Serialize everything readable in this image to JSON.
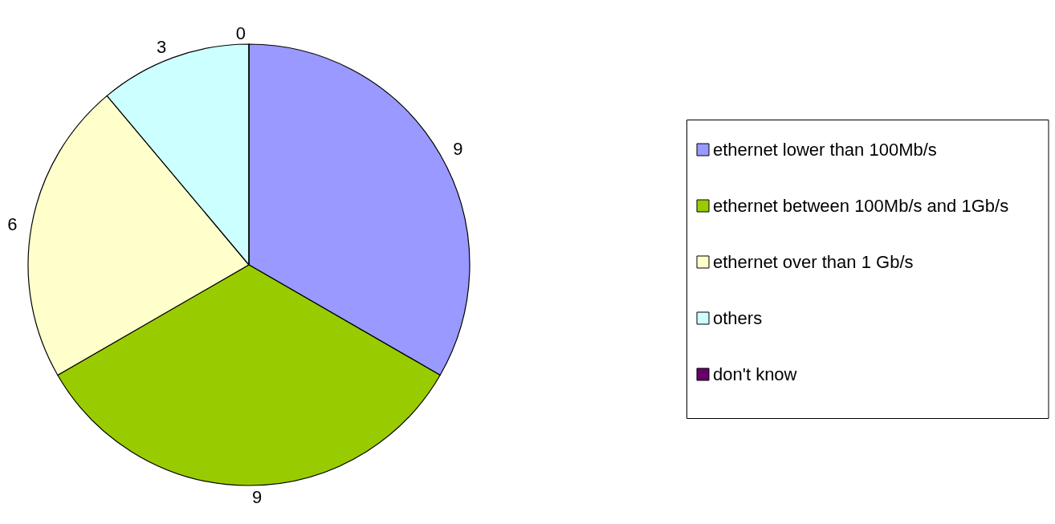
{
  "chart_data": {
    "type": "pie",
    "categories": [
      "ethernet lower than 100Mb/s",
      "ethernet between 100Mb/s and 1Gb/s",
      "ethernet over than 1 Gb/s",
      "others",
      "don't know"
    ],
    "values": [
      9,
      9,
      6,
      3,
      0
    ],
    "value_labels": [
      "9",
      "9",
      "6",
      "3",
      "0"
    ],
    "colors": [
      "#9999ff",
      "#99cc00",
      "#ffffcc",
      "#ccffff",
      "#660066"
    ],
    "legend": "right"
  }
}
